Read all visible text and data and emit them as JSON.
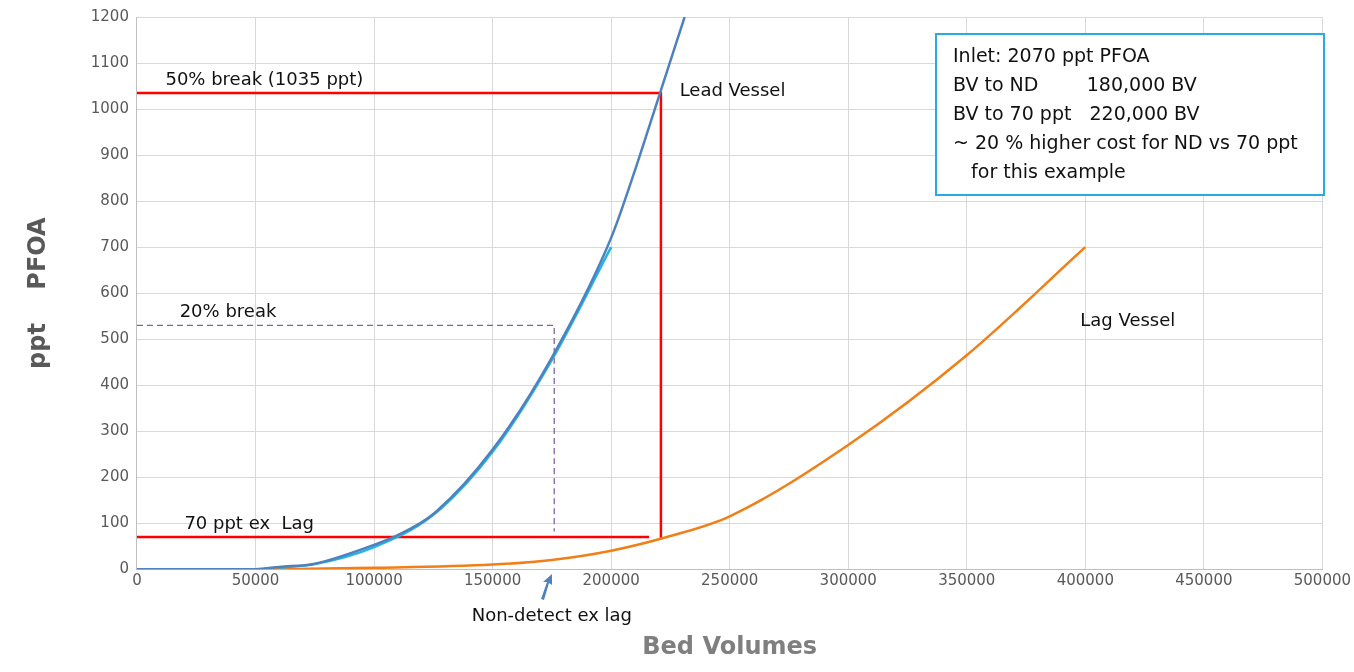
{
  "chart_data": {
    "type": "line",
    "xlabel": "Bed Volumes",
    "ylabel": "ppt    PFOA",
    "xlim": [
      0,
      500000
    ],
    "xticks": [
      0,
      50000,
      100000,
      150000,
      200000,
      250000,
      300000,
      350000,
      400000,
      450000,
      500000
    ],
    "ylim": [
      0,
      1200
    ],
    "yticks": [
      0,
      100,
      200,
      300,
      400,
      500,
      600,
      700,
      800,
      900,
      1000,
      1100,
      1200
    ],
    "grid": true,
    "legend": false,
    "marker": "none",
    "line_style": "solid",
    "series": [
      {
        "name": "Lead Vessel",
        "color": "#4f81bd",
        "x": [
          0,
          50000,
          60000,
          75000,
          100000,
          110000,
          125000,
          150000,
          175000,
          200000,
          210000,
          220000,
          231000
        ],
        "values": [
          0,
          0,
          5,
          12,
          53,
          74,
          120,
          260,
          460,
          720,
          866,
          1025,
          1200
        ]
      },
      {
        "color": "#1fb5e8",
        "x": [
          60000,
          75000,
          100000,
          125000,
          150000,
          175000,
          200000
        ],
        "values": [
          3,
          11,
          48,
          118,
          255,
          455,
          700
        ]
      },
      {
        "name": "Lag Vessel",
        "color": "#f07f17",
        "x": [
          0,
          50000,
          100000,
          150000,
          175000,
          200000,
          225000,
          250000,
          300000,
          350000,
          400000
        ],
        "values": [
          0,
          0,
          3,
          10,
          20,
          40,
          72,
          115,
          270,
          465,
          700
        ]
      },
      {
        "color": "#ff0000",
        "x": [
          0,
          220000,
          221000,
          221000
        ],
        "values": [
          1035,
          1035,
          1035,
          65
        ]
      },
      {
        "color": "#ff0000",
        "x": [
          0,
          216000
        ],
        "values": [
          70,
          70
        ]
      },
      {
        "color": "#8064a2",
        "line_style": "dashed",
        "x": [
          0,
          176000,
          176000
        ],
        "values": [
          530,
          530,
          82
        ]
      }
    ],
    "annotations": [
      {
        "text": "50% break (1035 ppt)",
        "x": 12000,
        "y": 1035
      },
      {
        "text": "20% break",
        "x": 18000,
        "y": 530
      },
      {
        "text": "70 ppt ex  Lag",
        "x": 20000,
        "y": 70
      },
      "Non-detect ex lag",
      "Inlet: 2070 ppt PFOA",
      "BV to ND        180,000 BV",
      "BV to 70 ppt   220,000 BV",
      "~ 20 % higher cost for ND vs 70 ppt",
      "   for this example"
    ]
  }
}
